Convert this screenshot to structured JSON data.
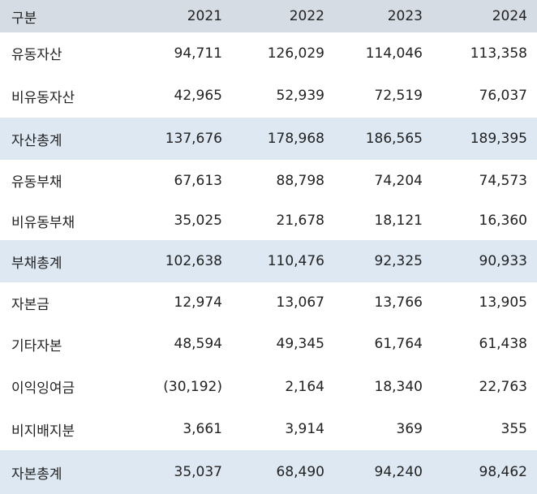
{
  "table": {
    "header": [
      "구분",
      "2021",
      "2022",
      "2023",
      "2024"
    ],
    "rows": [
      {
        "label": "유동자산",
        "values": [
          "94,711",
          "126,029",
          "114,046",
          "113,358"
        ],
        "total": false
      },
      {
        "label": "비유동자산",
        "values": [
          "42,965",
          "52,939",
          "72,519",
          "76,037"
        ],
        "total": false
      },
      {
        "label": "자산총계",
        "values": [
          "137,676",
          "178,968",
          "186,565",
          "189,395"
        ],
        "total": true
      },
      {
        "label": "유동부채",
        "values": [
          "67,613",
          "88,798",
          "74,204",
          "74,573"
        ],
        "total": false
      },
      {
        "label": "비유동부채",
        "values": [
          "35,025",
          "21,678",
          "18,121",
          "16,360"
        ],
        "total": false
      },
      {
        "label": "부채총계",
        "values": [
          "102,638",
          "110,476",
          "92,325",
          "90,933"
        ],
        "total": true
      },
      {
        "label": "자본금",
        "values": [
          "12,974",
          "13,067",
          "13,766",
          "13,905"
        ],
        "total": false
      },
      {
        "label": "기타자본",
        "values": [
          "48,594",
          "49,345",
          "61,764",
          "61,438"
        ],
        "total": false
      },
      {
        "label": "이익잉여금",
        "values": [
          "(30,192)",
          "2,164",
          "18,340",
          "22,763"
        ],
        "total": false
      },
      {
        "label": "비지배지분",
        "values": [
          "3,661",
          "3,914",
          "369",
          "355"
        ],
        "total": false
      },
      {
        "label": "자본총계",
        "values": [
          "35,037",
          "68,490",
          "94,240",
          "98,462"
        ],
        "total": true
      }
    ]
  },
  "colors": {
    "header_bg": "#d6dce4",
    "total_row_bg": "#dde8f3",
    "row_bg": "#ffffff",
    "text": "#222222"
  }
}
